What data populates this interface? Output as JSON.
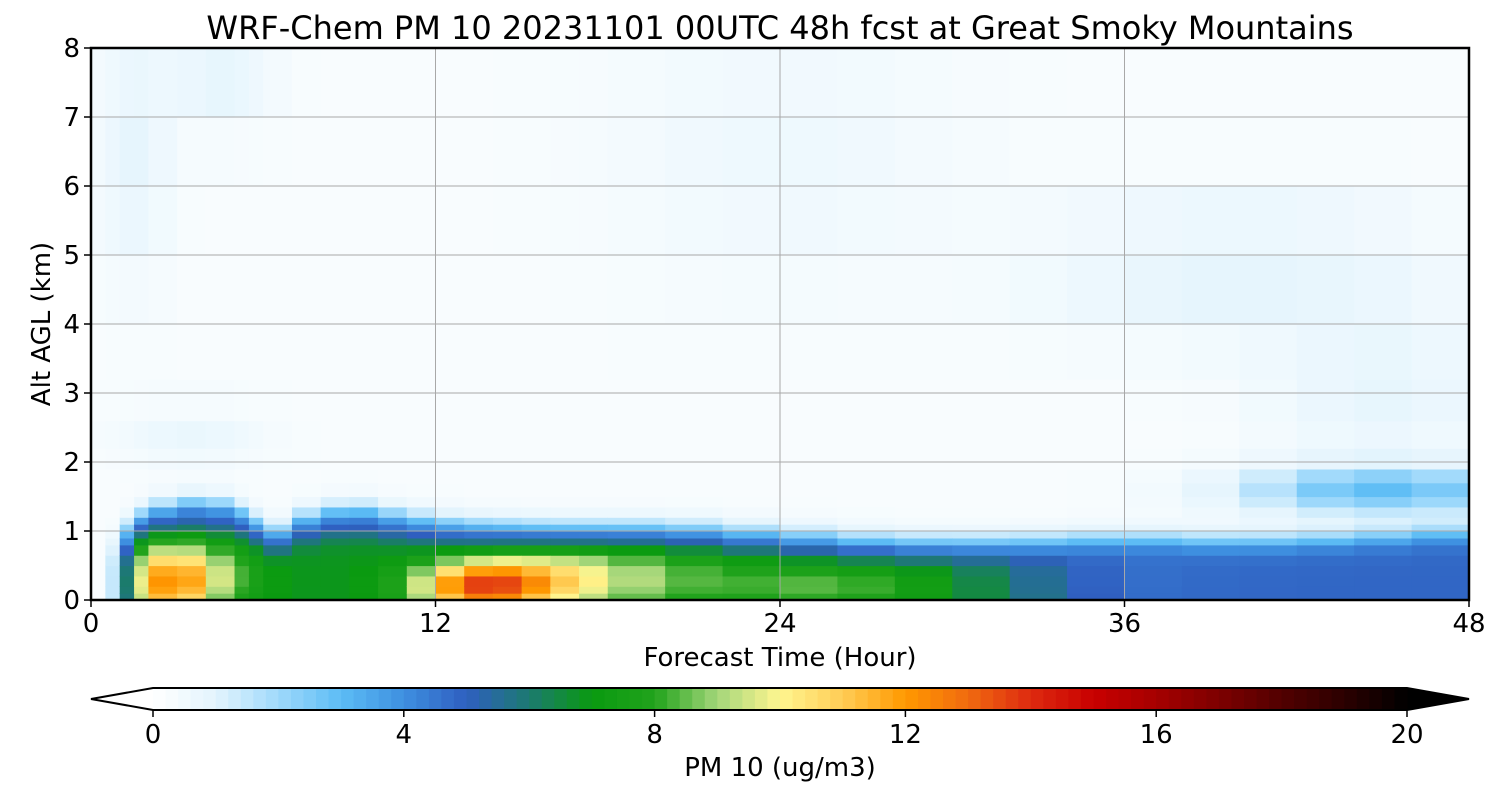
{
  "chart_data": {
    "type": "heatmap",
    "title": "WRF-Chem PM 10  20231101 00UTC 48h fcst at Great Smoky Mountains",
    "xlabel": "Forecast Time (Hour)",
    "ylabel": "Alt AGL (km)",
    "xlim": [
      0,
      48
    ],
    "ylim": [
      0,
      8
    ],
    "xticks": [
      0,
      12,
      24,
      36,
      48
    ],
    "yticks": [
      0,
      1,
      2,
      3,
      4,
      5,
      6,
      7,
      8
    ],
    "grid": true,
    "colorbar": {
      "label": "PM 10  (ug/m3)",
      "range": [
        0,
        20
      ],
      "ticks": [
        0,
        4,
        8,
        12,
        16,
        20
      ],
      "extend": "both",
      "orientation": "horizontal",
      "stops": [
        {
          "v": 0,
          "c": "#ffffff"
        },
        {
          "v": 1,
          "c": "#e3f4fd"
        },
        {
          "v": 2,
          "c": "#9fd9fb"
        },
        {
          "v": 3,
          "c": "#5cbcf5"
        },
        {
          "v": 4,
          "c": "#3e8fe0"
        },
        {
          "v": 5,
          "c": "#2f5fc0"
        },
        {
          "v": 6,
          "c": "#1c7a70"
        },
        {
          "v": 7,
          "c": "#0a9a10"
        },
        {
          "v": 8,
          "c": "#21a31c"
        },
        {
          "v": 9,
          "c": "#a4d67a"
        },
        {
          "v": 10,
          "c": "#fff690"
        },
        {
          "v": 11,
          "c": "#ffcc55"
        },
        {
          "v": 12,
          "c": "#ff9900"
        },
        {
          "v": 13,
          "c": "#f06a10"
        },
        {
          "v": 14,
          "c": "#de2a10"
        },
        {
          "v": 15,
          "c": "#c80000"
        },
        {
          "v": 16,
          "c": "#a50000"
        },
        {
          "v": 17,
          "c": "#7d0000"
        },
        {
          "v": 18,
          "c": "#520000"
        },
        {
          "v": 19,
          "c": "#2b0000"
        },
        {
          "v": 20,
          "c": "#000000"
        }
      ]
    },
    "x": [
      0,
      0.5,
      1,
      1.5,
      2,
      3,
      4,
      5,
      5.5,
      6,
      7,
      8,
      9,
      10,
      11,
      12,
      13,
      14,
      15,
      16,
      17,
      18,
      20,
      22,
      24,
      26,
      28,
      30,
      32,
      34,
      36,
      38,
      40,
      42,
      44,
      46,
      48
    ],
    "y": [
      0,
      0.1,
      0.2,
      0.35,
      0.5,
      0.65,
      0.8,
      0.9,
      1.0,
      1.1,
      1.2,
      1.35,
      1.5,
      1.7,
      1.9,
      2.2,
      2.6,
      3.2,
      4.0,
      5.0,
      6.0,
      7.0,
      8.0
    ],
    "features": {
      "background": 0.25,
      "upper_plumes": [
        {
          "x": 1.5,
          "y": 6.5,
          "sx": 1.2,
          "sy": 1.8,
          "v": 0.65
        },
        {
          "x": 4.5,
          "y": 7.6,
          "sx": 1.8,
          "sy": 0.8,
          "v": 0.6
        },
        {
          "x": 24,
          "y": 6.5,
          "sx": 6,
          "sy": 2.0,
          "v": 0.35
        },
        {
          "x": 40,
          "y": 4.8,
          "sx": 7,
          "sy": 1.0,
          "v": 0.7
        },
        {
          "x": 45,
          "y": 3.0,
          "sx": 4,
          "sy": 1.0,
          "v": 0.6
        },
        {
          "x": 45,
          "y": 1.6,
          "sx": 5,
          "sy": 0.35,
          "v": 2.6
        },
        {
          "x": 3.5,
          "y": 2.4,
          "sx": 2.5,
          "sy": 0.4,
          "v": 0.5
        }
      ],
      "mixed_layer_top": [
        [
          0,
          0.25
        ],
        [
          0.7,
          0.9
        ],
        [
          2,
          1.3
        ],
        [
          4,
          1.45
        ],
        [
          5.5,
          1.25
        ],
        [
          6.2,
          0.95
        ],
        [
          7.5,
          1.2
        ],
        [
          9,
          1.35
        ],
        [
          11,
          1.2
        ],
        [
          13,
          1.1
        ],
        [
          16,
          1.05
        ],
        [
          20,
          1.05
        ],
        [
          24,
          0.95
        ],
        [
          28,
          0.85
        ],
        [
          32,
          0.85
        ],
        [
          36,
          0.9
        ],
        [
          40,
          0.85
        ],
        [
          44,
          0.9
        ],
        [
          48,
          1.0
        ]
      ],
      "hotspots": [
        {
          "x": 2.7,
          "y": 0.25,
          "sx": 1.3,
          "sy": 0.55,
          "v": 11.2
        },
        {
          "x": 4.2,
          "y": 0.35,
          "sx": 1.6,
          "sy": 0.45,
          "v": 8.6
        },
        {
          "x": 13.5,
          "y": 0.2,
          "sx": 2.2,
          "sy": 0.35,
          "v": 12.0
        },
        {
          "x": 16,
          "y": 0.3,
          "sx": 3.0,
          "sy": 0.45,
          "v": 9.4
        },
        {
          "x": 20,
          "y": 0.35,
          "sx": 4.0,
          "sy": 0.5,
          "v": 7.8
        },
        {
          "x": 26,
          "y": 0.2,
          "sx": 3.5,
          "sy": 0.3,
          "v": 8.0
        },
        {
          "x": 33,
          "y": 0.3,
          "sx": 5.0,
          "sy": 0.45,
          "v": 6.2
        }
      ]
    }
  }
}
